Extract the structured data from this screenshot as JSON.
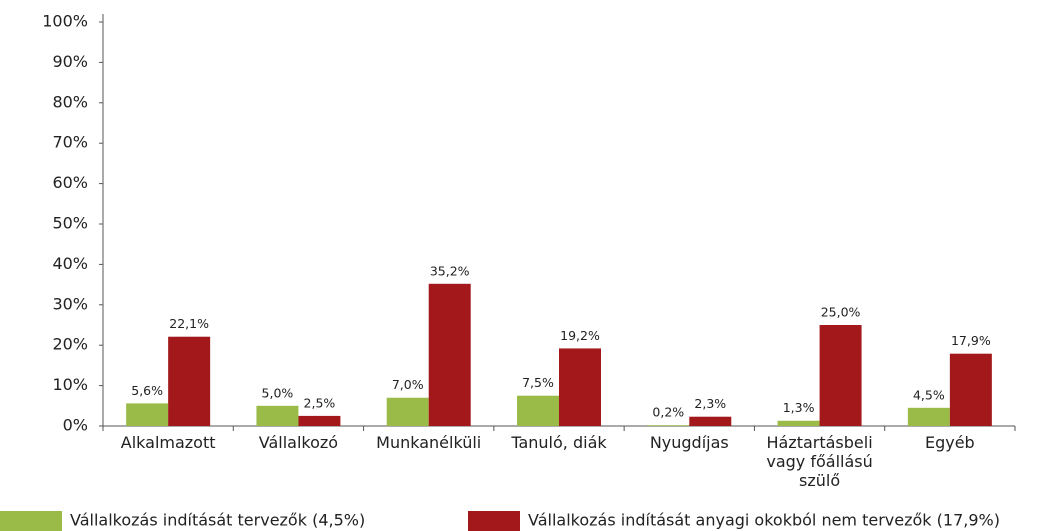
{
  "chart_data": {
    "type": "bar",
    "categories": [
      "Alkalmazott",
      "Vállalkozó",
      "Munkanélküli",
      "Tanuló, diák",
      "Nyugdíjas",
      "Háztartásbeli vagy főállású szülő",
      "Egyéb"
    ],
    "series": [
      {
        "name": "Vállalkozás indítását tervezők (4,5%)",
        "color": "#9bbb48",
        "values": [
          5.6,
          5.0,
          7.0,
          7.5,
          0.2,
          1.3,
          4.5
        ],
        "value_labels": [
          "5,6%",
          "5,0%",
          "7,0%",
          "7,5%",
          "0,2%",
          "1,3%",
          "4,5%"
        ]
      },
      {
        "name": "Vállalkozás indítását anyagi okokból nem tervezők (17,9%)",
        "color": "#a3191b",
        "values": [
          22.1,
          2.5,
          35.2,
          19.2,
          2.3,
          25.0,
          17.9
        ],
        "value_labels": [
          "22,1%",
          "2,5%",
          "35,2%",
          "19,2%",
          "2,3%",
          "25,0%",
          "17,9%"
        ]
      }
    ],
    "ylim": [
      0,
      100
    ],
    "yticks": [
      {
        "value": 0,
        "label": "0%"
      },
      {
        "value": 10,
        "label": "10%"
      },
      {
        "value": 20,
        "label": "20%"
      },
      {
        "value": 30,
        "label": "30%"
      },
      {
        "value": 40,
        "label": "40%"
      },
      {
        "value": 50,
        "label": "50%"
      },
      {
        "value": 60,
        "label": "60%"
      },
      {
        "value": 70,
        "label": "70%"
      },
      {
        "value": 80,
        "label": "80%"
      },
      {
        "value": 90,
        "label": "90%"
      },
      {
        "value": 100,
        "label": "100%"
      }
    ],
    "grid": false
  }
}
